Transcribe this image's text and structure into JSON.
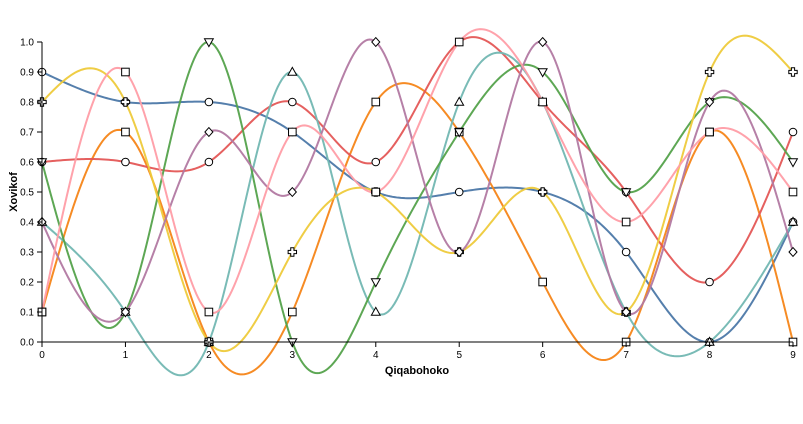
{
  "chart_data": {
    "type": "line",
    "xlabel": "Qiqabohoko",
    "ylabel": "Xovikof",
    "x": [
      0,
      1,
      2,
      3,
      4,
      5,
      6,
      7,
      8,
      9
    ],
    "xlim": [
      0,
      9
    ],
    "ylim": [
      0,
      1
    ],
    "x_ticks": [
      "0",
      "1",
      "2",
      "3",
      "4",
      "5",
      "6",
      "7",
      "8",
      "9"
    ],
    "y_ticks": [
      "0.0",
      "0.1",
      "0.2",
      "0.3",
      "0.4",
      "0.5",
      "0.6",
      "0.7",
      "0.8",
      "0.9",
      "1.0"
    ],
    "grid": false,
    "legend": "none",
    "series": [
      {
        "color": "#4c78a8",
        "marker": "circle",
        "values": [
          0.9,
          0.8,
          0.8,
          0.7,
          0.5,
          0.5,
          0.5,
          0.3,
          0.0,
          0.4
        ]
      },
      {
        "color": "#f58518",
        "marker": "square",
        "values": [
          0.1,
          0.7,
          0.0,
          0.1,
          0.8,
          0.7,
          0.2,
          0.0,
          0.7,
          0.0
        ]
      },
      {
        "color": "#e45756",
        "marker": "circle",
        "values": [
          0.6,
          0.6,
          0.6,
          0.8,
          0.6,
          1.0,
          0.8,
          0.5,
          0.2,
          0.7
        ]
      },
      {
        "color": "#72b7b2",
        "marker": "triangle-up",
        "values": [
          0.4,
          0.1,
          0.0,
          0.9,
          0.1,
          0.8,
          0.8,
          0.1,
          0.0,
          0.4
        ]
      },
      {
        "color": "#54a24b",
        "marker": "triangle-down",
        "values": [
          0.6,
          0.1,
          1.0,
          0.0,
          0.2,
          0.7,
          0.9,
          0.5,
          0.8,
          0.6
        ]
      },
      {
        "color": "#eeca3b",
        "marker": "cross",
        "values": [
          0.8,
          0.8,
          0.0,
          0.3,
          0.5,
          0.3,
          0.5,
          0.1,
          0.9,
          0.9
        ]
      },
      {
        "color": "#b279a2",
        "marker": "diamond",
        "values": [
          0.4,
          0.1,
          0.7,
          0.5,
          1.0,
          0.3,
          1.0,
          0.1,
          0.8,
          0.3
        ]
      },
      {
        "color": "#ff9da6",
        "marker": "square",
        "values": [
          0.1,
          0.9,
          0.1,
          0.7,
          0.5,
          1.0,
          0.8,
          0.4,
          0.7,
          0.5
        ]
      }
    ]
  }
}
